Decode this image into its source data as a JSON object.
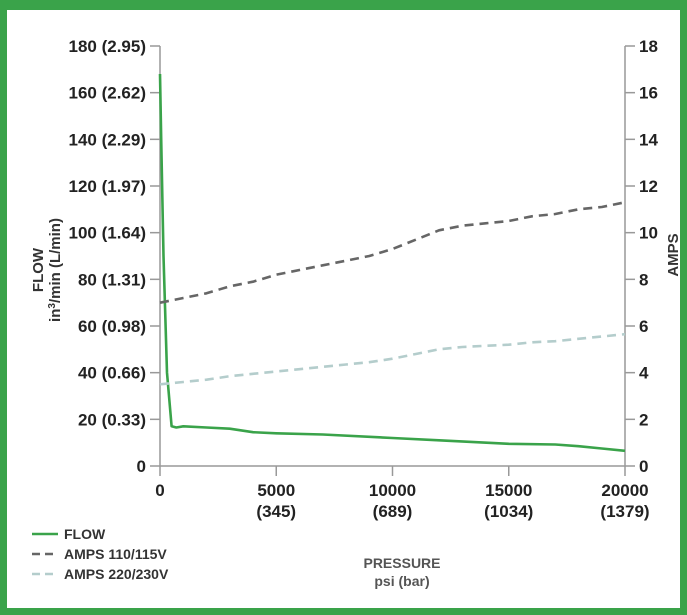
{
  "chart_data": {
    "type": "line",
    "xlabel": "PRESSURE",
    "xlabel_units": "psi (bar)",
    "ylabel_left": "FLOW",
    "ylabel_left_units": "in³/min (L/min)",
    "ylabel_right": "AMPS",
    "xlim": [
      0,
      20000
    ],
    "ylim_left": [
      0,
      180
    ],
    "ylim_right": [
      0,
      18
    ],
    "x_ticks": [
      {
        "value": 0,
        "label": "0",
        "sublabel": ""
      },
      {
        "value": 5000,
        "label": "5000",
        "sublabel": "(345)"
      },
      {
        "value": 10000,
        "label": "10000",
        "sublabel": "(689)"
      },
      {
        "value": 15000,
        "label": "15000",
        "sublabel": "(1034)"
      },
      {
        "value": 20000,
        "label": "20000",
        "sublabel": "(1379)"
      }
    ],
    "y_left_ticks": [
      {
        "value": 0,
        "label": "0"
      },
      {
        "value": 20,
        "label": "20 (0.33)"
      },
      {
        "value": 40,
        "label": "40 (0.66)"
      },
      {
        "value": 60,
        "label": "60 (0.98)"
      },
      {
        "value": 80,
        "label": "80 (1.31)"
      },
      {
        "value": 100,
        "label": "100 (1.64)"
      },
      {
        "value": 120,
        "label": "120 (1.97)"
      },
      {
        "value": 140,
        "label": "140 (2.29)"
      },
      {
        "value": 160,
        "label": "160 (2.62)"
      },
      {
        "value": 180,
        "label": "180 (2.95)"
      }
    ],
    "y_right_ticks": [
      {
        "value": 0,
        "label": "0"
      },
      {
        "value": 2,
        "label": "2"
      },
      {
        "value": 4,
        "label": "4"
      },
      {
        "value": 6,
        "label": "6"
      },
      {
        "value": 8,
        "label": "8"
      },
      {
        "value": 10,
        "label": "10"
      },
      {
        "value": 12,
        "label": "12"
      },
      {
        "value": 14,
        "label": "14"
      },
      {
        "value": 16,
        "label": "16"
      },
      {
        "value": 18,
        "label": "18"
      }
    ],
    "grid": false,
    "legend_position": "bottom-left",
    "series": [
      {
        "name": "FLOW",
        "axis": "left",
        "color": "#3aa34a",
        "dash": "solid",
        "x": [
          0,
          50,
          150,
          300,
          500,
          700,
          1000,
          2000,
          3000,
          4000,
          5000,
          7000,
          10000,
          12000,
          15000,
          17000,
          18000,
          19000,
          20000
        ],
        "y": [
          168,
          140,
          90,
          40,
          17,
          16.5,
          17,
          16.5,
          16,
          14.5,
          14,
          13.5,
          12,
          11,
          9.5,
          9.2,
          8.5,
          7.5,
          6.5
        ]
      },
      {
        "name": "AMPS 110/115V",
        "axis": "right",
        "color": "#666666",
        "dash": "dashed",
        "x": [
          0,
          1000,
          2000,
          3000,
          4000,
          5000,
          6000,
          7000,
          8000,
          9000,
          10000,
          11000,
          12000,
          13000,
          14000,
          15000,
          16000,
          17000,
          18000,
          19000,
          20000
        ],
        "y": [
          7.0,
          7.2,
          7.4,
          7.7,
          7.9,
          8.2,
          8.4,
          8.6,
          8.8,
          9.0,
          9.3,
          9.7,
          10.1,
          10.3,
          10.4,
          10.5,
          10.7,
          10.8,
          11.0,
          11.1,
          11.3
        ]
      },
      {
        "name": "AMPS 220/230V",
        "axis": "right",
        "color": "#b4cdcc",
        "dash": "dashed",
        "x": [
          0,
          1000,
          2000,
          3000,
          4000,
          5000,
          6000,
          7000,
          8000,
          9000,
          10000,
          11000,
          12000,
          13000,
          14000,
          15000,
          16000,
          17000,
          18000,
          19000,
          20000
        ],
        "y": [
          3.5,
          3.6,
          3.7,
          3.85,
          3.95,
          4.05,
          4.15,
          4.25,
          4.35,
          4.45,
          4.6,
          4.8,
          5.0,
          5.1,
          5.15,
          5.2,
          5.3,
          5.35,
          5.45,
          5.55,
          5.65
        ]
      }
    ]
  }
}
